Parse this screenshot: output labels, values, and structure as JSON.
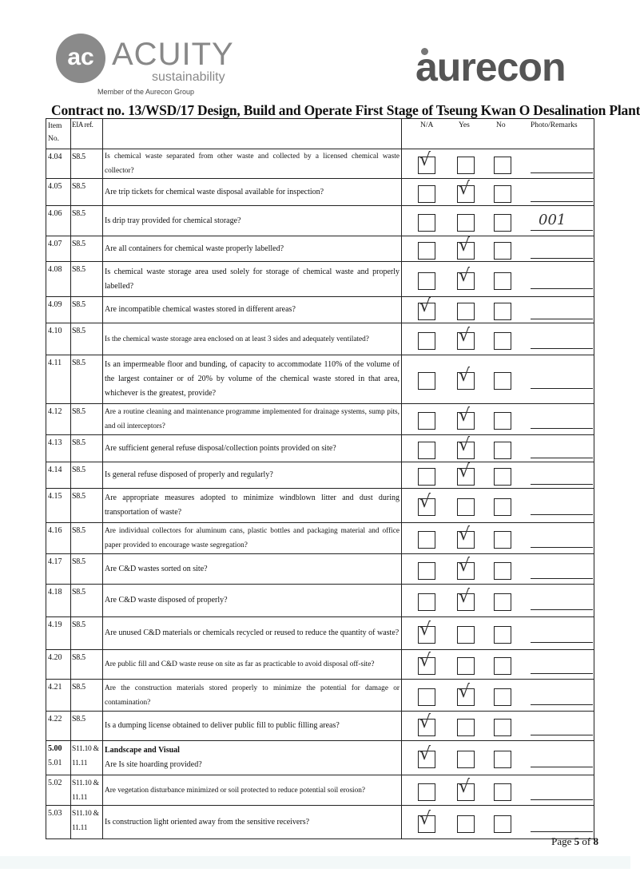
{
  "header": {
    "acuity_logo": {
      "mark": "ac",
      "name": "ACUITY",
      "sub": "sustainability",
      "member": "Member of the Aurecon Group"
    },
    "aurecon_logo": "aurecon",
    "title": "Contract no.  13/WSD/17 Design, Build and Operate First Stage of Tseung Kwan O Desalination Plant"
  },
  "table": {
    "columns": {
      "item": "Item No.",
      "eia": "EIA ref.",
      "na": "N/A",
      "yes": "Yes",
      "no": "No",
      "remarks": "Photo/Remarks"
    },
    "rows": [
      {
        "item": "4.04",
        "eia": "S8.5",
        "desc": "Is chemical waste separated from other waste and collected by a licensed chemical waste collector?",
        "answer": "na"
      },
      {
        "item": "4.05",
        "eia": "S8.5",
        "desc": "Are trip tickets for chemical waste disposal available for inspection?",
        "answer": "yes"
      },
      {
        "item": "4.06",
        "eia": "S8.5",
        "desc": "Is drip tray provided for chemical storage?",
        "answer": "",
        "remark": "001"
      },
      {
        "item": "4.07",
        "eia": "S8.5",
        "desc": "Are all containers for chemical waste properly labelled?",
        "answer": "yes"
      },
      {
        "item": "4.08",
        "eia": "S8.5",
        "desc": "Is chemical waste storage area used solely for storage of chemical waste and properly labelled?",
        "answer": "yes"
      },
      {
        "item": "4.09",
        "eia": "S8.5",
        "desc": "Are incompatible chemical wastes stored in different areas?",
        "answer": "na"
      },
      {
        "item": "4.10",
        "eia": "S8.5",
        "desc": "Is the chemical waste storage area enclosed on at least 3 sides and adequately ventilated?",
        "answer": "yes"
      },
      {
        "item": "4.11",
        "eia": "S8.5",
        "desc": "Is an impermeable floor and bunding, of capacity to accommodate 110% of the volume of the largest container or of 20% by volume of the chemical waste stored in that area, whichever is the greatest, provide?",
        "answer": "yes"
      },
      {
        "item": "4.12",
        "eia": "S8.5",
        "desc": "Are a routine cleaning and maintenance programme implemented for drainage systems, sump pits, and oil interceptors?",
        "answer": "yes"
      },
      {
        "item": "4.13",
        "eia": "S8.5",
        "desc": "Are sufficient general refuse disposal/collection points provided on site?",
        "answer": "yes"
      },
      {
        "item": "4.14",
        "eia": "S8.5",
        "desc": "Is general refuse disposed of properly and regularly?",
        "answer": "yes"
      },
      {
        "item": "4.15",
        "eia": "S8.5",
        "desc": "Are appropriate measures adopted to minimize windblown litter and dust during transportation of waste?",
        "answer": "na"
      },
      {
        "item": "4.16",
        "eia": "S8.5",
        "desc": "Are individual collectors for aluminum cans, plastic bottles and packaging material and office paper provided to encourage waste segregation?",
        "answer": "yes"
      },
      {
        "item": "4.17",
        "eia": "S8.5",
        "desc": "Are C&D wastes sorted on site?",
        "answer": "yes"
      },
      {
        "item": "4.18",
        "eia": "S8.5",
        "desc": "Are C&D waste disposed of properly?",
        "answer": "yes"
      },
      {
        "item": "4.19",
        "eia": "S8.5",
        "desc": "Are unused C&D materials or chemicals recycled or reused to reduce the quantity of waste?",
        "answer": "na"
      },
      {
        "item": "4.20",
        "eia": "S8.5",
        "desc": "Are public fill and C&D waste reuse on site as far as practicable to avoid disposal off-site?",
        "answer": "na"
      },
      {
        "item": "4.21",
        "eia": "S8.5",
        "desc": "Are the construction materials stored properly to minimize the potential for damage or contamination?",
        "answer": "yes"
      },
      {
        "item": "4.22",
        "eia": "S8.5",
        "desc": "Is a dumping license obtained to deliver public fill to public filling areas?",
        "answer": "na"
      },
      {
        "item": "5.00",
        "item2": "5.01",
        "eia": "S11.10 & 11.11",
        "section": "Landscape and Visual",
        "desc": "Are Is site hoarding provided?",
        "answer": "na"
      },
      {
        "item": "5.02",
        "eia": "S11.10 & 11.11",
        "desc": "Are vegetation disturbance minimized or soil protected to reduce potential soil erosion?",
        "answer": "yes"
      },
      {
        "item": "5.03",
        "eia": "S11.10 & 11.11",
        "desc": "Is construction light oriented away from the sensitive receivers?",
        "answer": "na"
      }
    ]
  },
  "footer": {
    "page_prefix": "Page ",
    "page": "5",
    "of": " of ",
    "total": "8"
  }
}
